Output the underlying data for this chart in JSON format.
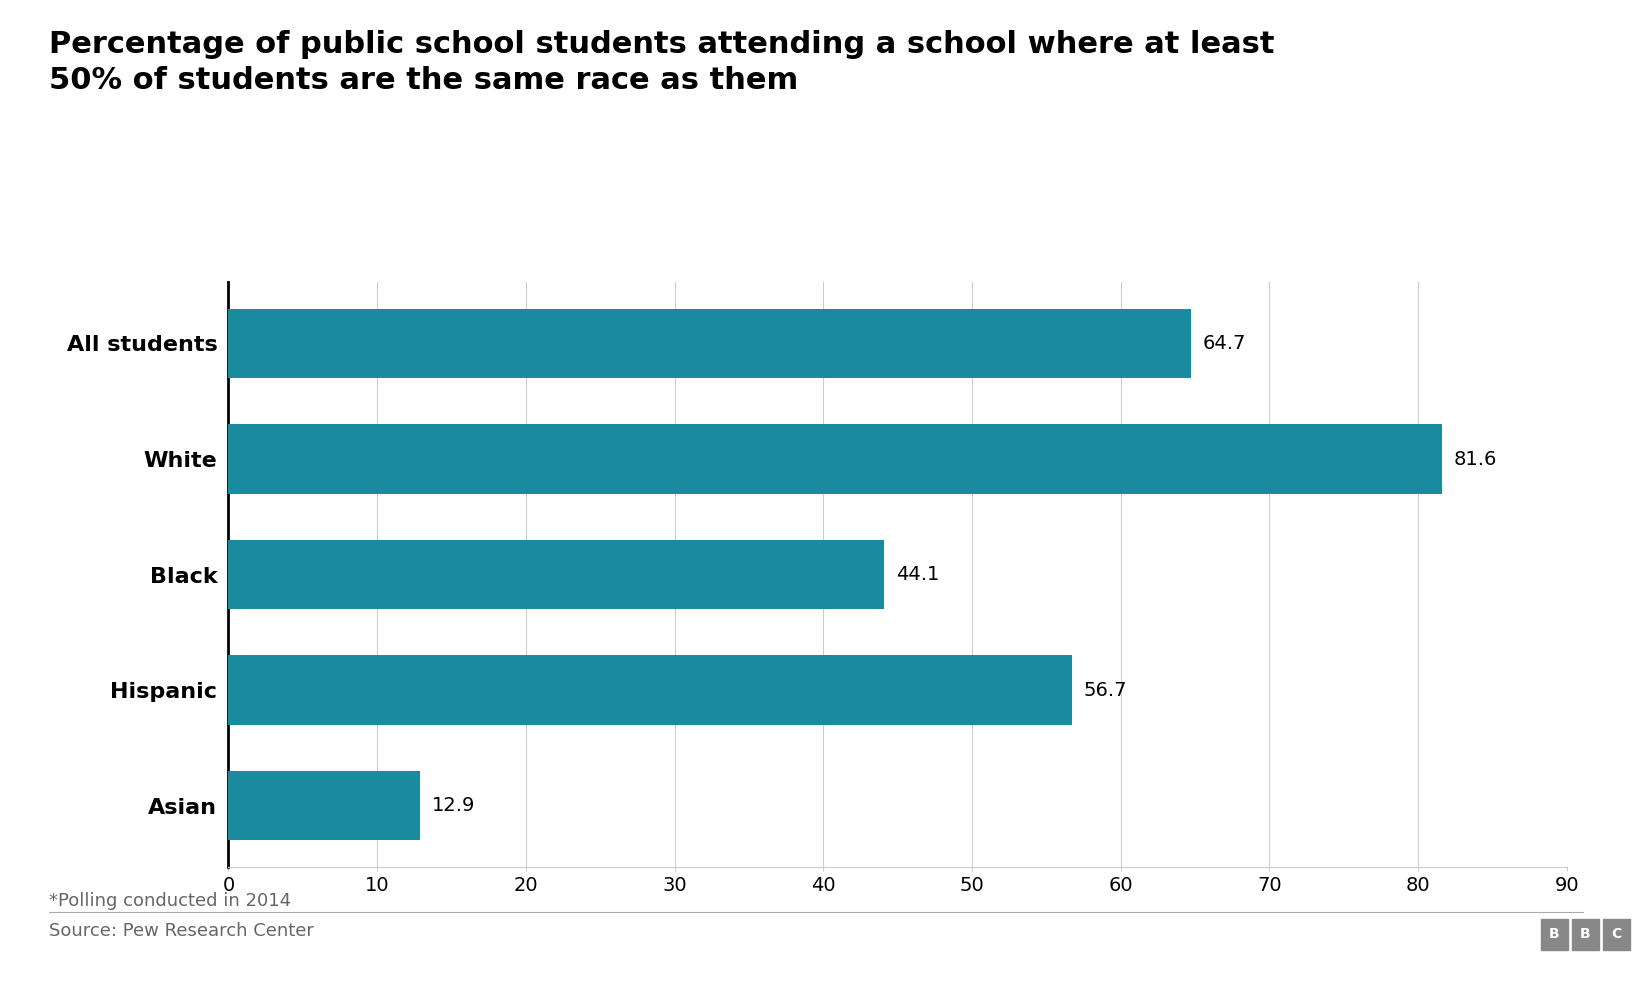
{
  "title": "Percentage of public school students attending a school where at least\n50% of students are the same race as them",
  "categories": [
    "All students",
    "White",
    "Black",
    "Hispanic",
    "Asian"
  ],
  "values": [
    64.7,
    81.6,
    44.1,
    56.7,
    12.9
  ],
  "bar_color": "#1a8a9e",
  "xlim": [
    0,
    90
  ],
  "xticks": [
    0,
    10,
    20,
    30,
    40,
    50,
    60,
    70,
    80,
    90
  ],
  "footnote": "*Polling conducted in 2014",
  "source": "Source: Pew Research Center",
  "title_fontsize": 22,
  "label_fontsize": 16,
  "tick_fontsize": 14,
  "annotation_fontsize": 14,
  "footnote_fontsize": 13,
  "background_color": "#ffffff"
}
